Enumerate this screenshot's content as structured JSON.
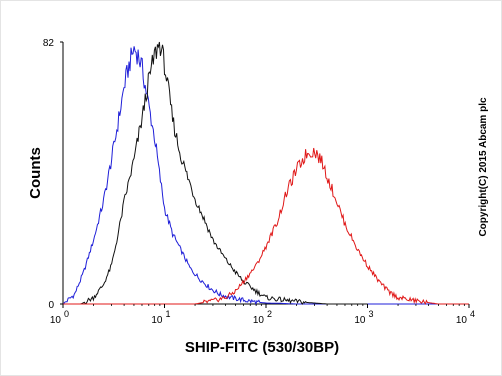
{
  "chart_data": {
    "type": "line",
    "title": "",
    "xlabel": "SHIP-FITC (530/30BP)",
    "ylabel": "Counts",
    "xscale": "log",
    "xlim": [
      1,
      10000
    ],
    "ylim": [
      0,
      82
    ],
    "x_ticks": [
      {
        "base": "10",
        "exp": "0"
      },
      {
        "base": "10",
        "exp": "1"
      },
      {
        "base": "10",
        "exp": "2"
      },
      {
        "base": "10",
        "exp": "3"
      },
      {
        "base": "10",
        "exp": "4"
      }
    ],
    "y_ticks": [
      "0",
      "82"
    ],
    "grid": false,
    "legend": "none",
    "annotation": "Copyright(C) 2015 Abcam plc",
    "series": [
      {
        "color": "#1f1fd8",
        "x": [
          1.0,
          1.3,
          1.6,
          2.0,
          2.5,
          3.0,
          3.5,
          4.0,
          4.5,
          5.0,
          5.5,
          6.0,
          7.0,
          8.0,
          9.0,
          10.0,
          12.0,
          15.0,
          18.0,
          22.0,
          28.0,
          35.0,
          45.0,
          60.0,
          80.0,
          100.0,
          140.0,
          200.0,
          300.0,
          500.0,
          1000.0,
          3000.0,
          10000.0
        ],
        "y": [
          0,
          3,
          10,
          20,
          32,
          45,
          57,
          68,
          75,
          80,
          78,
          74,
          62,
          52,
          40,
          30,
          22,
          16,
          11,
          8,
          5,
          3,
          2,
          1.2,
          0.6,
          0.3,
          0.2,
          0,
          0,
          0,
          0,
          0,
          0
        ]
      },
      {
        "color": "#111111",
        "x": [
          1.0,
          1.5,
          2.0,
          2.5,
          3.0,
          3.5,
          4.0,
          5.0,
          6.0,
          7.0,
          8.0,
          9.0,
          10.0,
          11.0,
          12.0,
          14.0,
          16.0,
          20.0,
          25.0,
          30.0,
          40.0,
          50.0,
          60.0,
          80.0,
          100.0,
          130.0,
          170.0,
          250.0,
          400.0,
          1000.0,
          10000.0
        ],
        "y": [
          0,
          0,
          2,
          6,
          12,
          22,
          32,
          45,
          58,
          70,
          78,
          82,
          75,
          66,
          58,
          48,
          42,
          33,
          26,
          20,
          14,
          10,
          7,
          4,
          2,
          1.5,
          1,
          0.5,
          0,
          0,
          0
        ],
        "visible_x_end": 1000
      },
      {
        "color": "#e01818",
        "x": [
          1.0,
          3.0,
          10.0,
          20.0,
          30.0,
          40.0,
          50.0,
          60.0,
          80.0,
          100.0,
          130.0,
          160.0,
          200.0,
          250.0,
          300.0,
          350.0,
          400.0,
          500.0,
          600.0,
          800.0,
          1000.0,
          1300.0,
          1600.0,
          2000.0,
          3000.0,
          5000.0
        ],
        "y": [
          0,
          0,
          0,
          0,
          1,
          2,
          4,
          7,
          12,
          18,
          26,
          35,
          42,
          47,
          48,
          45,
          40,
          32,
          25,
          17,
          12,
          7,
          4,
          2,
          1,
          0
        ]
      }
    ]
  }
}
